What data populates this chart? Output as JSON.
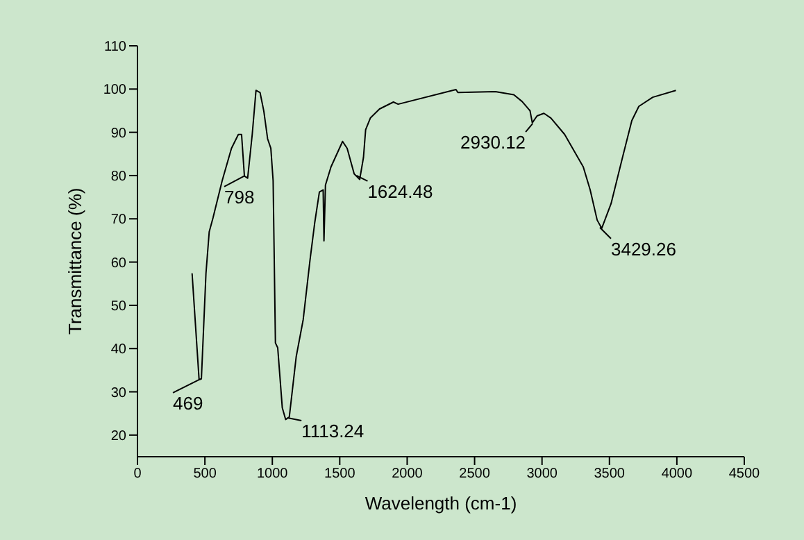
{
  "chart_data": {
    "type": "line",
    "xlabel": "Wavelength (cm-1)",
    "ylabel": "Transmittance (%)",
    "x": [
      405,
      457,
      474,
      508,
      532,
      560,
      628,
      697,
      748,
      772,
      793,
      817,
      851,
      879,
      909,
      937,
      965,
      989,
      1006,
      1023,
      1040,
      1074,
      1099,
      1126,
      1177,
      1229,
      1280,
      1315,
      1349,
      1377,
      1383,
      1394,
      1435,
      1521,
      1555,
      1607,
      1648,
      1676,
      1692,
      1727,
      1795,
      1898,
      1933,
      2362,
      2376,
      2654,
      2791,
      2853,
      2911,
      2928,
      2963,
      3014,
      3066,
      3168,
      3306,
      3357,
      3409,
      3443,
      3512,
      3597,
      3666,
      3718,
      3821,
      3993
    ],
    "series": [
      {
        "color": "#000000",
        "values": [
          57.4,
          32.8,
          33,
          57.4,
          67,
          70.2,
          78.8,
          86.3,
          89.5,
          89.5,
          79.9,
          79.4,
          89.5,
          99.7,
          99.2,
          94.9,
          88.5,
          86.3,
          78.8,
          41.3,
          40.2,
          26.3,
          23.6,
          24.2,
          38.1,
          46.7,
          60.6,
          69.2,
          76.2,
          76.7,
          64.9,
          77.8,
          82,
          87.9,
          86.3,
          80.4,
          79.1,
          84.2,
          90.6,
          93.3,
          95.4,
          97,
          96.5,
          99.9,
          99.2,
          99.4,
          98.7,
          97.1,
          95,
          92.2,
          93.8,
          94.4,
          93.3,
          89.5,
          82,
          76.7,
          69.7,
          67.8,
          73.5,
          84.2,
          92.7,
          96,
          98.1,
          99.7
        ]
      }
    ],
    "xlim": [
      0,
      4500
    ],
    "xticks": [
      0,
      500,
      1000,
      1500,
      2000,
      2500,
      3000,
      3500,
      4000,
      4500
    ],
    "ylim": [
      15,
      110
    ],
    "yticks": [
      20,
      30,
      40,
      50,
      60,
      70,
      80,
      90,
      100,
      110
    ],
    "grid": false,
    "legend": false,
    "annotations": [
      {
        "text": "469",
        "x": 469,
        "y": 33
      },
      {
        "text": "798",
        "x": 798,
        "y": 80
      },
      {
        "text": "1113.24",
        "x": 1113,
        "y": 24
      },
      {
        "text": "1624.48",
        "x": 1624,
        "y": 80
      },
      {
        "text": "2930.12",
        "x": 2930,
        "y": 92
      },
      {
        "text": "3429.26",
        "x": 3429,
        "y": 68
      }
    ]
  }
}
